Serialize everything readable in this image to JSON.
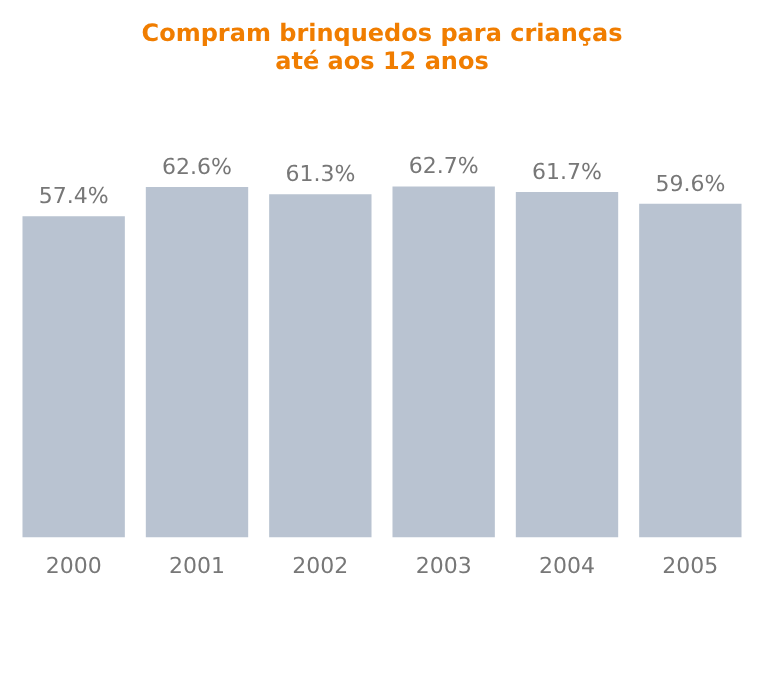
{
  "chart_data": {
    "type": "bar",
    "title": "Compram brinquedos para crianças\naté aos 12 anos",
    "categories": [
      "2000",
      "2001",
      "2002",
      "2003",
      "2004",
      "2005"
    ],
    "values": [
      57.4,
      62.6,
      61.3,
      62.7,
      61.7,
      59.6
    ],
    "value_labels": [
      "57.4%",
      "62.6%",
      "61.3%",
      "62.7%",
      "61.7%",
      "59.6%"
    ],
    "color": "#b9c3d1",
    "grid": false,
    "legend": false
  }
}
